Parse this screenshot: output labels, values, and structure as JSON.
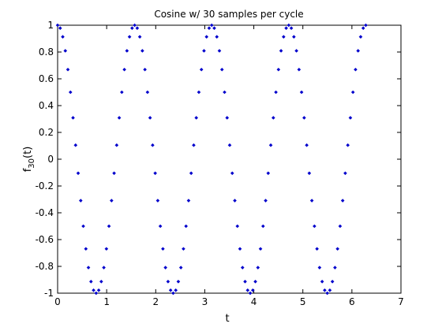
{
  "chart_data": {
    "type": "scatter",
    "title": "Cosine w/ 30 samples per cycle",
    "xlabel": "t",
    "ylabel_main": "f",
    "ylabel_sub": "30",
    "ylabel_tail": "(t)",
    "xlim": [
      0,
      7
    ],
    "ylim": [
      -1,
      1
    ],
    "xticks": [
      0,
      1,
      2,
      3,
      4,
      5,
      6,
      7
    ],
    "xtick_labels": [
      "0",
      "1",
      "2",
      "3",
      "4",
      "5",
      "6",
      "7"
    ],
    "yticks": [
      -1,
      -0.8,
      -0.6,
      -0.4,
      -0.2,
      0,
      0.2,
      0.4,
      0.6,
      0.8,
      1
    ],
    "ytick_labels": [
      "-1",
      "-0.8",
      "-0.6",
      "-0.4",
      "-0.2",
      "0",
      "0.2",
      "0.4",
      "0.6",
      "0.8",
      "1"
    ],
    "grid": false,
    "marker_color": "#0000cc",
    "x": [
      0.0,
      0.0524,
      0.1047,
      0.1571,
      0.2094,
      0.2618,
      0.3142,
      0.3665,
      0.4189,
      0.4712,
      0.5236,
      0.576,
      0.6283,
      0.6807,
      0.733,
      0.7854,
      0.8378,
      0.8901,
      0.9425,
      0.9948,
      1.0472,
      1.0996,
      1.1519,
      1.2043,
      1.2566,
      1.309,
      1.3614,
      1.4137,
      1.4661,
      1.5184,
      1.5708,
      1.6232,
      1.6755,
      1.7279,
      1.7802,
      1.8326,
      1.885,
      1.9373,
      1.9897,
      2.042,
      2.0944,
      2.1468,
      2.1991,
      2.2515,
      2.3038,
      2.3562,
      2.4086,
      2.4609,
      2.5133,
      2.5656,
      2.618,
      2.6704,
      2.7227,
      2.7751,
      2.8274,
      2.8798,
      2.9322,
      2.9845,
      3.0369,
      3.0892,
      3.1416,
      3.194,
      3.2463,
      3.2987,
      3.351,
      3.4034,
      3.4558,
      3.5081,
      3.5605,
      3.6128,
      3.6652,
      3.7176,
      3.7699,
      3.8223,
      3.8746,
      3.927,
      3.9794,
      4.0317,
      4.0841,
      4.1364,
      4.1888,
      4.2412,
      4.2935,
      4.3459,
      4.3982,
      4.4506,
      4.503,
      4.5553,
      4.6077,
      4.66,
      4.7124,
      4.7648,
      4.8171,
      4.8695,
      4.9218,
      4.9742,
      5.0265,
      5.0789,
      5.1313,
      5.1836,
      5.236,
      5.2883,
      5.3407,
      5.3931,
      5.4454,
      5.4978,
      5.5501,
      5.6025,
      5.6549,
      5.7072,
      5.7596,
      5.8119,
      5.8643,
      5.9167,
      5.969,
      6.0214,
      6.0737,
      6.1261,
      6.1785,
      6.2308,
      6.2832
    ],
    "y": [
      1.0,
      0.9781,
      0.9135,
      0.809,
      0.6691,
      0.5,
      0.309,
      0.1045,
      -0.1045,
      -0.309,
      -0.5,
      -0.6691,
      -0.809,
      -0.9135,
      -0.9781,
      -1.0,
      -0.9781,
      -0.9135,
      -0.809,
      -0.6691,
      -0.5,
      -0.309,
      -0.1045,
      0.1045,
      0.309,
      0.5,
      0.6691,
      0.809,
      0.9135,
      0.9781,
      1.0,
      0.9781,
      0.9135,
      0.809,
      0.6691,
      0.5,
      0.309,
      0.1045,
      -0.1045,
      -0.309,
      -0.5,
      -0.6691,
      -0.809,
      -0.9135,
      -0.9781,
      -1.0,
      -0.9781,
      -0.9135,
      -0.809,
      -0.6691,
      -0.5,
      -0.309,
      -0.1045,
      0.1045,
      0.309,
      0.5,
      0.6691,
      0.809,
      0.9135,
      0.9781,
      1.0,
      0.9781,
      0.9135,
      0.809,
      0.6691,
      0.5,
      0.309,
      0.1045,
      -0.1045,
      -0.309,
      -0.5,
      -0.6691,
      -0.809,
      -0.9135,
      -0.9781,
      -1.0,
      -0.9781,
      -0.9135,
      -0.809,
      -0.6691,
      -0.5,
      -0.309,
      -0.1045,
      0.1045,
      0.309,
      0.5,
      0.6691,
      0.809,
      0.9135,
      0.9781,
      1.0,
      0.9781,
      0.9135,
      0.809,
      0.6691,
      0.5,
      0.309,
      0.1045,
      -0.1045,
      -0.309,
      -0.5,
      -0.6691,
      -0.809,
      -0.9135,
      -0.9781,
      -1.0,
      -0.9781,
      -0.9135,
      -0.809,
      -0.6691,
      -0.5,
      -0.309,
      -0.1045,
      0.1045,
      0.309,
      0.5,
      0.6691,
      0.809,
      0.9135,
      0.9781,
      1.0
    ]
  }
}
